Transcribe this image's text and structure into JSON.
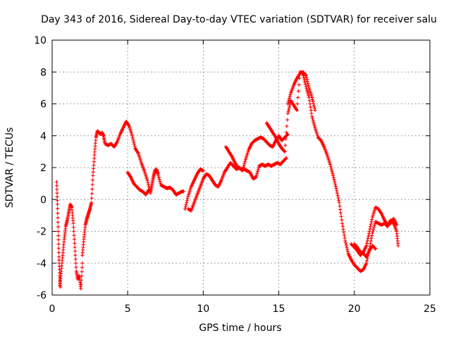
{
  "chart_data": {
    "type": "scatter",
    "title": "Day 343 of 2016, Sidereal Day-to-day VTEC variation (SDTVAR) for receiver salu",
    "xlabel": "GPS time / hours",
    "ylabel": "SDTVAR / TECUs",
    "xlim": [
      0,
      25
    ],
    "ylim": [
      -6,
      10
    ],
    "xticks": [
      0,
      5,
      10,
      15,
      20,
      25
    ],
    "yticks": [
      -6,
      -4,
      -2,
      0,
      2,
      4,
      6,
      8,
      10
    ],
    "xtick_labels": [
      "0",
      "5",
      "10",
      "15",
      "20",
      "25"
    ],
    "ytick_labels": [
      "-6",
      "-4",
      "-2",
      "0",
      "2",
      "4",
      "6",
      "8",
      "10"
    ],
    "grid": true,
    "marker": "+",
    "color": "#ff0000",
    "segments": [
      {
        "name": "seg1",
        "x": [
          0.3,
          0.35,
          0.4,
          0.45,
          0.5,
          0.55
        ],
        "y": [
          1.1,
          -0.3,
          -2.0,
          -3.6,
          -4.8,
          -5.5
        ]
      },
      {
        "name": "seg2",
        "x": [
          0.5,
          0.6,
          0.7,
          0.8,
          0.9,
          1.0,
          1.1,
          1.2,
          1.3,
          1.4,
          1.5,
          1.6,
          1.7,
          1.8,
          1.9,
          2.0
        ],
        "y": [
          -5.4,
          -4.5,
          -3.5,
          -2.5,
          -1.7,
          -1.3,
          -0.8,
          -0.3,
          -0.5,
          -1.5,
          -3.0,
          -4.5,
          -5.0,
          -4.8,
          -5.6,
          -4.0
        ]
      },
      {
        "name": "seg3",
        "x": [
          2.0,
          2.1,
          2.2,
          2.3,
          2.4,
          2.5,
          2.6,
          2.7,
          2.8,
          2.9,
          3.0,
          3.1,
          3.2,
          3.3,
          3.4,
          3.5,
          3.7,
          3.9,
          4.1,
          4.3,
          4.5,
          4.7,
          4.9,
          5.1,
          5.3,
          5.5,
          5.7,
          5.9,
          6.1,
          6.3,
          6.5,
          6.6,
          6.7,
          6.8,
          6.9,
          7.0,
          7.2,
          7.4,
          7.6,
          7.8,
          8.0,
          8.2,
          8.4,
          8.6,
          8.7
        ],
        "y": [
          -3.5,
          -2.5,
          -1.6,
          -1.2,
          -0.9,
          -0.6,
          -0.2,
          1.5,
          2.8,
          3.9,
          4.3,
          4.2,
          4.1,
          4.2,
          4.0,
          3.5,
          3.4,
          3.5,
          3.3,
          3.6,
          4.1,
          4.5,
          4.9,
          4.6,
          4.0,
          3.2,
          2.9,
          2.3,
          1.8,
          1.2,
          0.4,
          0.9,
          1.4,
          1.8,
          1.9,
          1.6,
          0.9,
          0.8,
          0.7,
          0.75,
          0.6,
          0.3,
          0.4,
          0.5,
          0.5
        ]
      },
      {
        "name": "seg4",
        "x": [
          5.0,
          5.2,
          5.4,
          5.6,
          5.8,
          6.0,
          6.2,
          6.4
        ],
        "y": [
          1.7,
          1.4,
          1.0,
          0.8,
          0.6,
          0.5,
          0.3,
          0.6
        ]
      },
      {
        "name": "seg5",
        "x": [
          9.0,
          9.2,
          9.4,
          9.6,
          9.8,
          10.0,
          10.2,
          10.4,
          10.6,
          10.8,
          11.0,
          11.2,
          11.4,
          11.6,
          11.8,
          12.0,
          12.2,
          12.4,
          12.6,
          12.8,
          13.0,
          13.2,
          13.4,
          13.6,
          13.8,
          14.0,
          14.2,
          14.4,
          14.6,
          14.8,
          15.0,
          15.2,
          15.4,
          15.6
        ],
        "y": [
          -0.6,
          -0.7,
          -0.2,
          0.3,
          0.8,
          1.3,
          1.6,
          1.5,
          1.2,
          0.9,
          0.8,
          1.2,
          1.7,
          2.0,
          2.3,
          2.1,
          1.9,
          2.0,
          1.8,
          2.5,
          3.1,
          3.5,
          3.7,
          3.8,
          3.9,
          3.8,
          3.6,
          3.4,
          3.3,
          3.7,
          4.0,
          3.7,
          3.9,
          4.1
        ]
      },
      {
        "name": "seg6",
        "x": [
          8.8,
          9.0,
          9.2,
          9.4,
          9.6,
          9.8,
          10.0
        ],
        "y": [
          -0.6,
          0.2,
          0.8,
          1.2,
          1.6,
          1.9,
          1.8
        ]
      },
      {
        "name": "seg7",
        "x": [
          11.5,
          11.7,
          11.9,
          12.1,
          12.3,
          12.5,
          12.7,
          12.9,
          13.1,
          13.3,
          13.5,
          13.7,
          13.9,
          14.1,
          14.3,
          14.5,
          14.7,
          14.9,
          15.1,
          15.3,
          15.5
        ],
        "y": [
          3.3,
          3.0,
          2.7,
          2.3,
          2.0,
          1.9,
          1.9,
          1.8,
          1.7,
          1.3,
          1.4,
          2.1,
          2.2,
          2.1,
          2.2,
          2.1,
          2.2,
          2.3,
          2.2,
          2.4,
          2.6
        ]
      },
      {
        "name": "seg8",
        "x": [
          14.2,
          14.4,
          14.6,
          14.8,
          15.0,
          15.2,
          15.4,
          15.6,
          15.8,
          16.0,
          16.2,
          16.4,
          16.6,
          16.8,
          17.0,
          17.2,
          17.4,
          17.6,
          17.8,
          18.0,
          18.2,
          18.4,
          18.6,
          18.8,
          19.0,
          19.2,
          19.4,
          19.6,
          19.8,
          20.0,
          20.2,
          20.4,
          20.6,
          20.8,
          21.0,
          21.2,
          21.4,
          21.6,
          21.8,
          22.0,
          22.2,
          22.4,
          22.6,
          22.8,
          22.9
        ],
        "y": [
          4.8,
          4.5,
          4.2,
          3.9,
          3.5,
          3.2,
          3.0,
          5.4,
          6.2,
          5.9,
          5.6,
          8.0,
          7.9,
          7.1,
          6.4,
          5.2,
          4.5,
          3.9,
          3.7,
          3.3,
          2.8,
          2.2,
          1.5,
          0.7,
          -0.2,
          -1.5,
          -2.6,
          -3.4,
          -3.8,
          -4.1,
          -4.3,
          -4.5,
          -4.4,
          -4.0,
          -3.1,
          -2.1,
          -1.4,
          -1.5,
          -1.6,
          -1.5,
          -1.7,
          -1.3,
          -1.5,
          -2.0,
          -2.9
        ]
      },
      {
        "name": "seg9",
        "x": [
          15.6,
          15.8,
          16.0,
          16.2,
          16.4,
          16.6,
          16.8,
          17.0,
          17.2,
          17.4
        ],
        "y": [
          6.0,
          6.7,
          7.2,
          7.6,
          7.9,
          8.0,
          7.8,
          7.0,
          6.4,
          5.6
        ]
      },
      {
        "name": "seg10",
        "x": [
          19.8,
          20.0,
          20.2,
          20.4,
          20.6,
          20.8,
          21.0,
          21.2,
          21.4,
          21.6,
          21.8,
          22.0,
          22.2,
          22.4,
          22.6,
          22.8
        ],
        "y": [
          -2.8,
          -3.0,
          -3.2,
          -3.5,
          -3.3,
          -2.9,
          -2.0,
          -1.1,
          -0.5,
          -0.6,
          -0.9,
          -1.3,
          -1.6,
          -1.5,
          -1.2,
          -1.6
        ]
      },
      {
        "name": "seg11",
        "x": [
          20.0,
          20.2,
          20.4,
          20.6,
          20.8,
          21.0,
          21.2,
          21.4
        ],
        "y": [
          -2.8,
          -3.0,
          -3.3,
          -3.4,
          -3.6,
          -3.2,
          -2.9,
          -3.1
        ]
      }
    ]
  }
}
